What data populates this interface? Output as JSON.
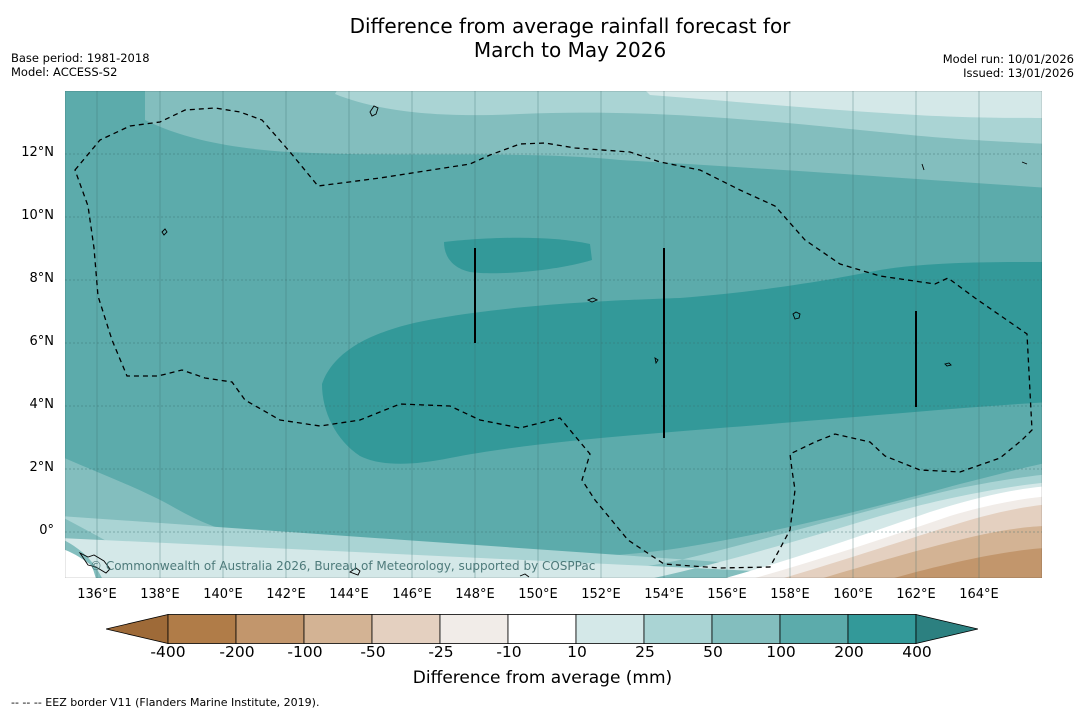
{
  "title": {
    "line1": "Difference from average rainfall forecast for",
    "line2": "March to May 2026"
  },
  "meta_left": {
    "base_period": "Base period: 1981-2018",
    "model": "Model: ACCESS-S2"
  },
  "meta_right": {
    "model_run": "Model run: 10/01/2026",
    "issued": "Issued: 13/01/2026"
  },
  "map": {
    "lat_labels": [
      "12°N",
      "10°N",
      "8°N",
      "6°N",
      "4°N",
      "2°N",
      "0°"
    ],
    "lon_labels": [
      "136°E",
      "138°E",
      "140°E",
      "142°E",
      "144°E",
      "146°E",
      "148°E",
      "150°E",
      "152°E",
      "154°E",
      "156°E",
      "158°E",
      "160°E",
      "162°E",
      "164°E"
    ],
    "copyright": "© Commonwealth of Australia 2026, Bureau of Meteorology, supported by COSPPac"
  },
  "colorbar": {
    "labels": [
      "-400",
      "-200",
      "-100",
      "-50",
      "-25",
      "-10",
      "10",
      "25",
      "50",
      "100",
      "200",
      "400"
    ],
    "colors": [
      "#9e6a38",
      "#b07c48",
      "#c2966c",
      "#d3b394",
      "#e4d0c0",
      "#f1ece8",
      "#ffffff",
      "#d4e8e8",
      "#aad4d4",
      "#83bebe",
      "#5cabab",
      "#339999",
      "#2c8080"
    ],
    "title": "Difference from average (mm)"
  },
  "legend_note": "--  --  -- EEZ border V11 (Flanders Marine Institute, 2019)."
}
